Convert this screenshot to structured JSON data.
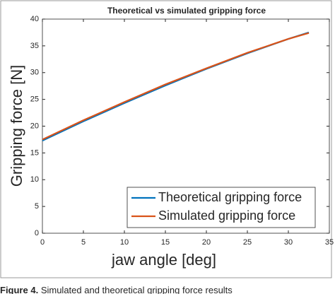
{
  "chart_data": {
    "type": "line",
    "title": "Theoretical vs simulated gripping force",
    "xlabel": "jaw angle [deg]",
    "ylabel": "Gripping force [N]",
    "x": [
      0,
      5,
      10,
      15,
      20,
      25,
      30,
      32.5
    ],
    "series": [
      {
        "name": "Theoretical gripping force",
        "color": "#0072bd",
        "values": [
          17.3,
          20.9,
          24.3,
          27.6,
          30.7,
          33.6,
          36.3,
          37.5
        ]
      },
      {
        "name": "Simulated gripping force",
        "color": "#d95319",
        "values": [
          17.5,
          21.1,
          24.5,
          27.8,
          30.8,
          33.7,
          36.3,
          37.4
        ]
      }
    ],
    "xlim": [
      0,
      35
    ],
    "xticks": [
      0,
      5,
      10,
      15,
      20,
      25,
      30,
      35
    ],
    "ylim": [
      0,
      40
    ],
    "yticks": [
      0,
      5,
      10,
      15,
      20,
      25,
      30,
      35,
      40
    ],
    "legend": "lower right"
  },
  "caption": {
    "label": "Figure 4.",
    "text": "Simulated and theoretical gripping force results"
  }
}
